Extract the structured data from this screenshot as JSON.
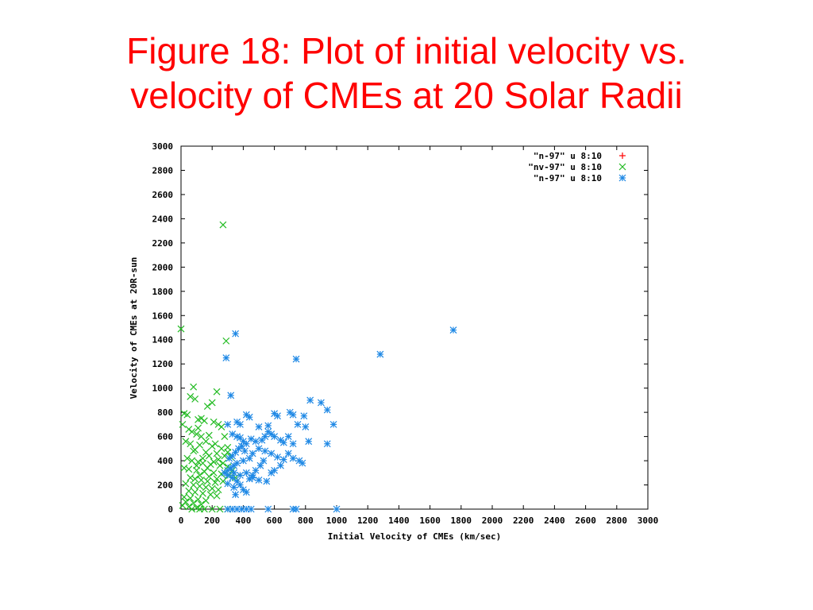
{
  "slide": {
    "title_line1": "Figure 18: Plot of initial velocity vs.",
    "title_line2": "velocity of CMEs at 20 Solar Radii"
  },
  "chart_data": {
    "type": "scatter",
    "xlabel": "Initial Velocity of CMEs (km/sec)",
    "ylabel": "Velocity of CMEs at 20R-sun",
    "xlim": [
      0,
      3000
    ],
    "ylim": [
      0,
      3000
    ],
    "xticks": [
      0,
      200,
      400,
      600,
      800,
      1000,
      1200,
      1400,
      1600,
      1800,
      2000,
      2200,
      2400,
      2600,
      2800,
      3000
    ],
    "yticks": [
      0,
      200,
      400,
      600,
      800,
      1000,
      1200,
      1400,
      1600,
      1800,
      2000,
      2200,
      2400,
      2600,
      2800,
      3000
    ],
    "grid": false,
    "legend_position": "top-right",
    "series": [
      {
        "name": "\"n-97\" u 8:10",
        "marker": "plus",
        "color": "#ff0000",
        "points": []
      },
      {
        "name": "\"nv-97\" u 8:10",
        "marker": "cross",
        "color": "#22bb22",
        "points": [
          [
            0,
            1490
          ],
          [
            270,
            2350
          ],
          [
            290,
            1390
          ],
          [
            80,
            1010
          ],
          [
            230,
            970
          ],
          [
            60,
            930
          ],
          [
            90,
            910
          ],
          [
            200,
            880
          ],
          [
            170,
            850
          ],
          [
            20,
            790
          ],
          [
            40,
            780
          ],
          [
            130,
            750
          ],
          [
            110,
            740
          ],
          [
            150,
            730
          ],
          [
            210,
            720
          ],
          [
            240,
            700
          ],
          [
            260,
            680
          ],
          [
            10,
            700
          ],
          [
            50,
            660
          ],
          [
            70,
            640
          ],
          [
            100,
            620
          ],
          [
            180,
            610
          ],
          [
            280,
            600
          ],
          [
            30,
            560
          ],
          [
            60,
            540
          ],
          [
            120,
            530
          ],
          [
            200,
            520
          ],
          [
            300,
            510
          ],
          [
            90,
            490
          ],
          [
            160,
            470
          ],
          [
            230,
            460
          ],
          [
            280,
            440
          ],
          [
            320,
            430
          ],
          [
            40,
            420
          ],
          [
            70,
            400
          ],
          [
            110,
            390
          ],
          [
            140,
            380
          ],
          [
            190,
            370
          ],
          [
            250,
            360
          ],
          [
            20,
            340
          ],
          [
            50,
            330
          ],
          [
            100,
            320
          ],
          [
            150,
            310
          ],
          [
            210,
            300
          ],
          [
            260,
            290
          ],
          [
            310,
            280
          ],
          [
            60,
            260
          ],
          [
            90,
            250
          ],
          [
            130,
            240
          ],
          [
            170,
            230
          ],
          [
            220,
            220
          ],
          [
            30,
            210
          ],
          [
            80,
            200
          ],
          [
            120,
            190
          ],
          [
            160,
            180
          ],
          [
            200,
            170
          ],
          [
            240,
            160
          ],
          [
            50,
            150
          ],
          [
            90,
            140
          ],
          [
            140,
            130
          ],
          [
            190,
            120
          ],
          [
            230,
            110
          ],
          [
            20,
            100
          ],
          [
            60,
            90
          ],
          [
            110,
            80
          ],
          [
            160,
            70
          ],
          [
            30,
            60
          ],
          [
            80,
            50
          ],
          [
            130,
            40
          ],
          [
            10,
            30
          ],
          [
            50,
            20
          ],
          [
            100,
            10
          ],
          [
            150,
            0
          ],
          [
            200,
            0
          ],
          [
            250,
            0
          ],
          [
            300,
            0
          ],
          [
            70,
            0
          ],
          [
            120,
            0
          ],
          [
            180,
            440
          ],
          [
            140,
            420
          ],
          [
            100,
            360
          ],
          [
            170,
            340
          ],
          [
            210,
            390
          ],
          [
            240,
            410
          ],
          [
            270,
            380
          ],
          [
            120,
            280
          ],
          [
            180,
            270
          ],
          [
            230,
            250
          ],
          [
            270,
            230
          ],
          [
            300,
            350
          ],
          [
            330,
            320
          ],
          [
            350,
            260
          ],
          [
            110,
            670
          ],
          [
            130,
            600
          ],
          [
            160,
            560
          ],
          [
            220,
            540
          ],
          [
            260,
            500
          ],
          [
            300,
            470
          ],
          [
            80,
            480
          ]
        ]
      },
      {
        "name": "\"n-97\" u 8:10",
        "marker": "star",
        "color": "#1e88e5",
        "points": [
          [
            1750,
            1480
          ],
          [
            1280,
            1280
          ],
          [
            350,
            1450
          ],
          [
            740,
            1240
          ],
          [
            290,
            1250
          ],
          [
            320,
            940
          ],
          [
            830,
            900
          ],
          [
            900,
            880
          ],
          [
            940,
            820
          ],
          [
            980,
            700
          ],
          [
            600,
            790
          ],
          [
            620,
            770
          ],
          [
            700,
            800
          ],
          [
            720,
            780
          ],
          [
            790,
            770
          ],
          [
            560,
            690
          ],
          [
            500,
            680
          ],
          [
            440,
            760
          ],
          [
            420,
            780
          ],
          [
            360,
            720
          ],
          [
            380,
            700
          ],
          [
            300,
            700
          ],
          [
            330,
            620
          ],
          [
            360,
            600
          ],
          [
            380,
            590
          ],
          [
            400,
            560
          ],
          [
            420,
            540
          ],
          [
            450,
            580
          ],
          [
            480,
            560
          ],
          [
            520,
            570
          ],
          [
            540,
            600
          ],
          [
            560,
            640
          ],
          [
            580,
            620
          ],
          [
            600,
            600
          ],
          [
            640,
            570
          ],
          [
            660,
            550
          ],
          [
            690,
            600
          ],
          [
            720,
            540
          ],
          [
            750,
            700
          ],
          [
            800,
            680
          ],
          [
            820,
            560
          ],
          [
            940,
            540
          ],
          [
            460,
            460
          ],
          [
            500,
            500
          ],
          [
            540,
            480
          ],
          [
            580,
            460
          ],
          [
            620,
            430
          ],
          [
            660,
            410
          ],
          [
            690,
            460
          ],
          [
            720,
            420
          ],
          [
            760,
            400
          ],
          [
            780,
            380
          ],
          [
            440,
            420
          ],
          [
            400,
            400
          ],
          [
            360,
            380
          ],
          [
            340,
            360
          ],
          [
            320,
            340
          ],
          [
            300,
            320
          ],
          [
            340,
            300
          ],
          [
            380,
            280
          ],
          [
            420,
            300
          ],
          [
            460,
            260
          ],
          [
            500,
            240
          ],
          [
            550,
            230
          ],
          [
            580,
            300
          ],
          [
            600,
            320
          ],
          [
            640,
            360
          ],
          [
            300,
            280
          ],
          [
            280,
            300
          ],
          [
            310,
            420
          ],
          [
            330,
            440
          ],
          [
            350,
            470
          ],
          [
            370,
            500
          ],
          [
            390,
            520
          ],
          [
            410,
            480
          ],
          [
            330,
            260
          ],
          [
            360,
            230
          ],
          [
            300,
            210
          ],
          [
            340,
            180
          ],
          [
            350,
            120
          ],
          [
            380,
            200
          ],
          [
            400,
            160
          ],
          [
            420,
            140
          ],
          [
            440,
            250
          ],
          [
            460,
            280
          ],
          [
            480,
            320
          ],
          [
            510,
            360
          ],
          [
            530,
            400
          ],
          [
            300,
            0
          ],
          [
            330,
            0
          ],
          [
            360,
            0
          ],
          [
            390,
            0
          ],
          [
            420,
            0
          ],
          [
            450,
            0
          ],
          [
            560,
            0
          ],
          [
            720,
            0
          ],
          [
            740,
            0
          ],
          [
            1000,
            0
          ]
        ]
      }
    ]
  }
}
